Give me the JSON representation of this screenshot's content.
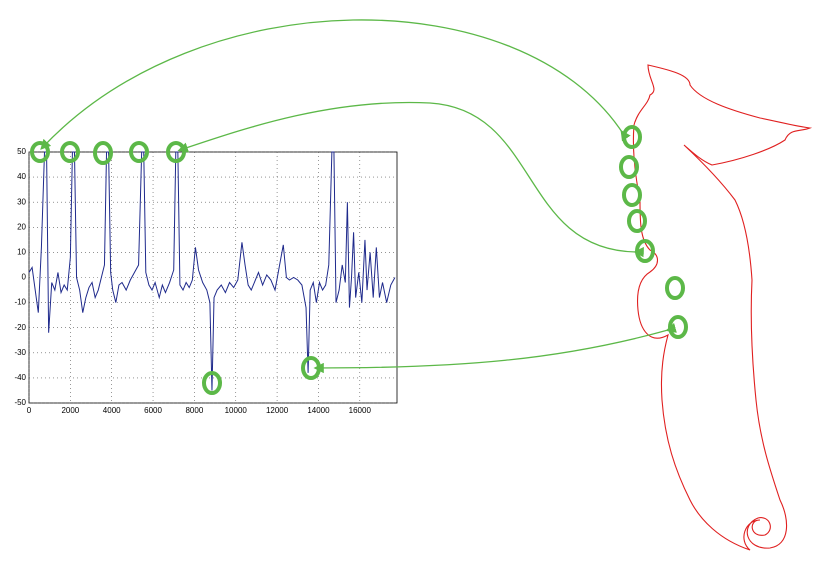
{
  "chart_data": {
    "type": "line",
    "color": "#1f2a8c",
    "grid": true,
    "xlim": [
      0,
      17800
    ],
    "ylim": [
      -50,
      50
    ],
    "xticks": [
      0,
      2000,
      4000,
      6000,
      8000,
      10000,
      12000,
      14000,
      16000
    ],
    "yticks": [
      -50,
      -40,
      -30,
      -20,
      -10,
      0,
      10,
      20,
      30,
      40,
      50
    ],
    "x": [
      0,
      150,
      300,
      450,
      600,
      750,
      850,
      950,
      1100,
      1250,
      1400,
      1550,
      1700,
      1850,
      2000,
      2100,
      2200,
      2300,
      2450,
      2600,
      2750,
      2900,
      3050,
      3200,
      3350,
      3500,
      3650,
      3750,
      3850,
      3950,
      4050,
      4200,
      4350,
      4500,
      4700,
      4900,
      5100,
      5300,
      5450,
      5550,
      5650,
      5800,
      5950,
      6100,
      6300,
      6450,
      6600,
      6800,
      7000,
      7100,
      7200,
      7300,
      7450,
      7600,
      7750,
      7900,
      8050,
      8200,
      8400,
      8600,
      8750,
      8850,
      8950,
      9100,
      9300,
      9500,
      9700,
      9900,
      10100,
      10300,
      10450,
      10600,
      10750,
      10900,
      11100,
      11300,
      11500,
      11700,
      11900,
      12100,
      12300,
      12450,
      12600,
      12800,
      13000,
      13200,
      13400,
      13500,
      13600,
      13750,
      13900,
      14050,
      14200,
      14350,
      14500,
      14650,
      14750,
      14850,
      15000,
      15150,
      15300,
      15400,
      15500,
      15600,
      15700,
      15800,
      15950,
      16100,
      16250,
      16350,
      16500,
      16650,
      16800,
      16950,
      17100,
      17300,
      17500,
      17700
    ],
    "values": [
      2,
      4,
      -5,
      -14,
      12,
      50,
      50,
      -22,
      -2,
      -5,
      2,
      -6,
      -3,
      -5,
      8,
      50,
      50,
      0,
      -5,
      -14,
      -8,
      -4,
      -2,
      -8,
      -5,
      0,
      5,
      50,
      50,
      2,
      -5,
      -10,
      -3,
      -2,
      -5,
      -1,
      2,
      5,
      50,
      50,
      2,
      -3,
      -5,
      -2,
      -8,
      -3,
      -6,
      -2,
      3,
      50,
      50,
      -3,
      -5,
      -2,
      -4,
      -1,
      12,
      3,
      -2,
      -5,
      -10,
      -45,
      -8,
      -5,
      -3,
      -6,
      -2,
      -4,
      -1,
      14,
      5,
      -3,
      -5,
      -2,
      2,
      -3,
      1,
      -1,
      -5,
      4,
      13,
      0,
      -1,
      0,
      -1,
      -3,
      -12,
      -38,
      -5,
      -2,
      -10,
      -2,
      -5,
      -3,
      5,
      50,
      50,
      -10,
      -5,
      5,
      -2,
      30,
      -12,
      0,
      18,
      -8,
      2,
      -10,
      15,
      -5,
      10,
      -8,
      12,
      -8,
      -2,
      -10,
      -3,
      0
    ]
  }
}
